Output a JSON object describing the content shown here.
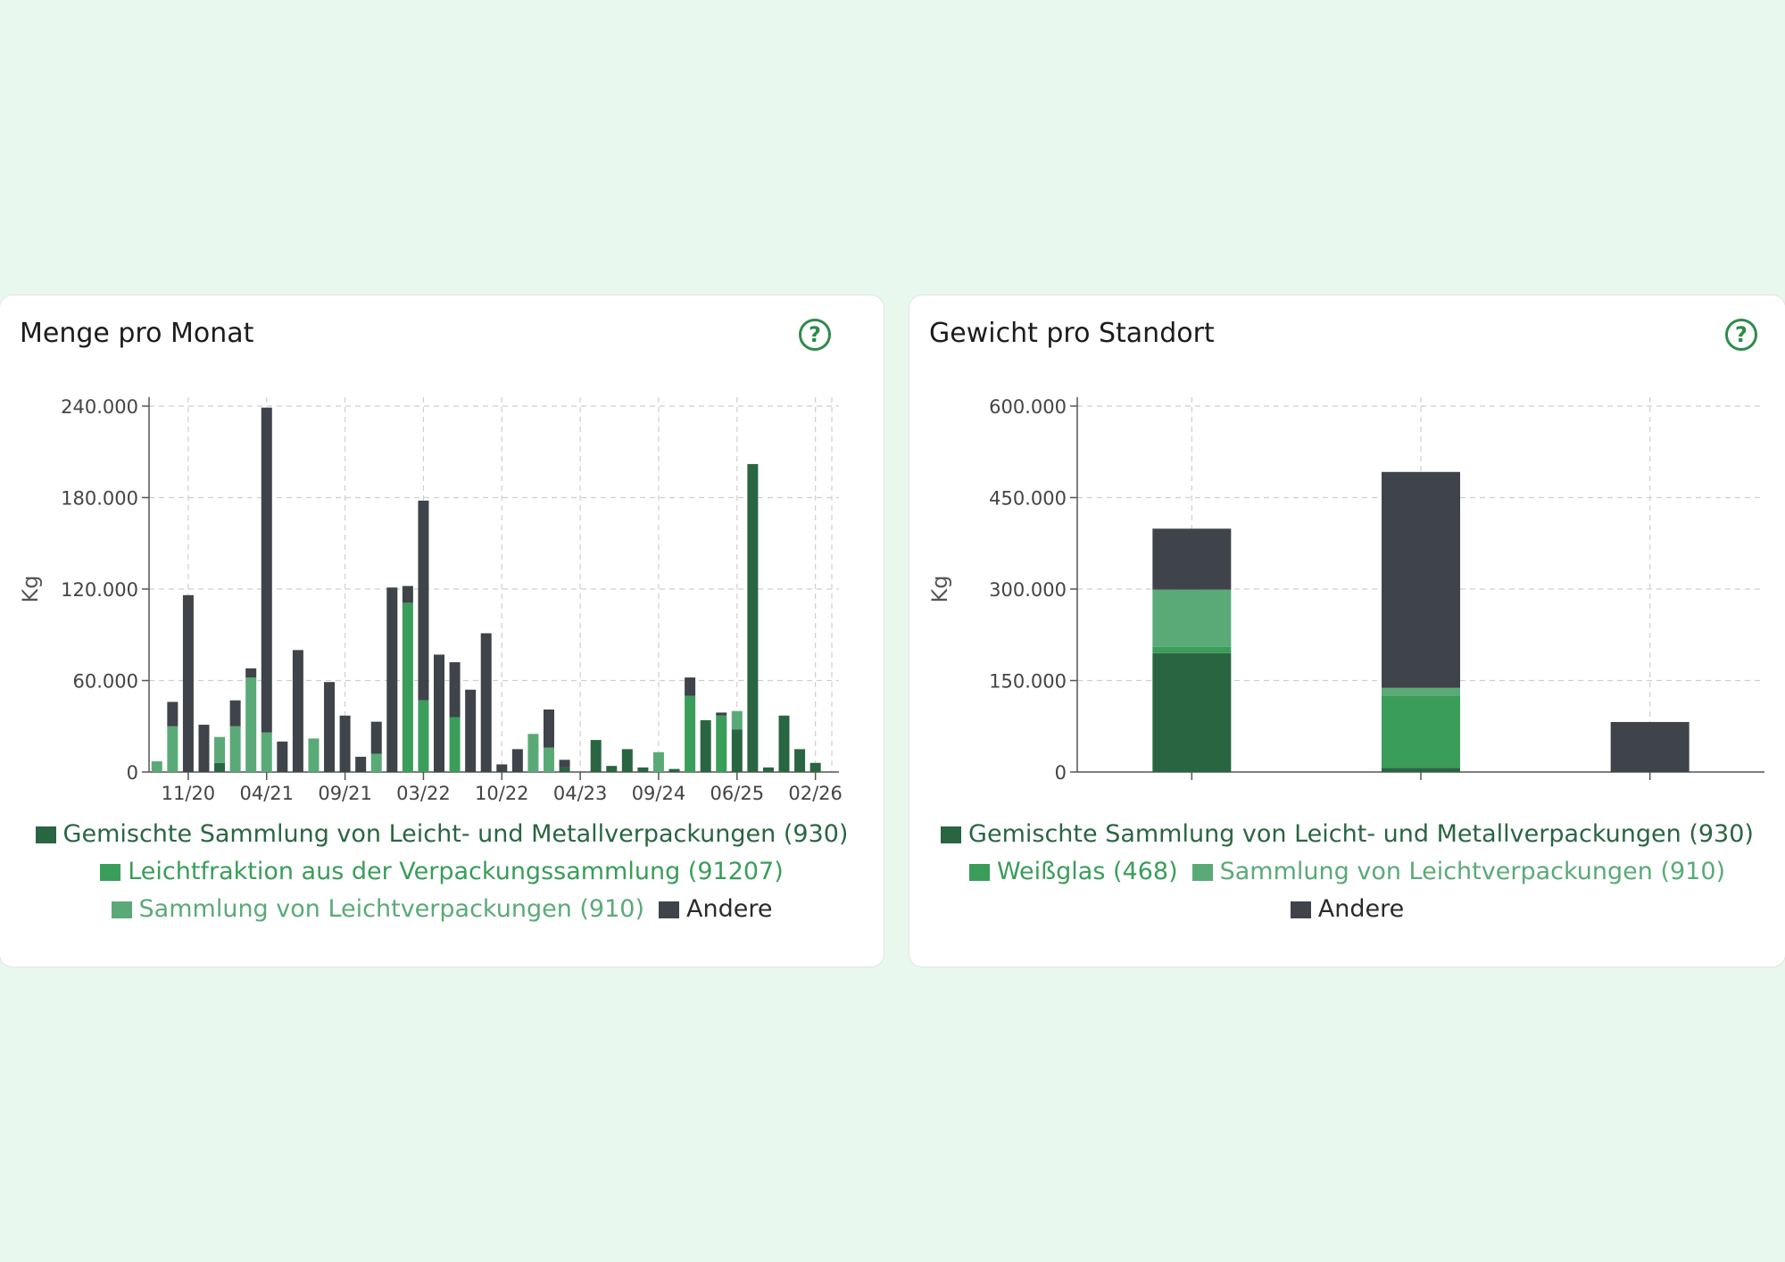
{
  "colors": {
    "dark_green": "#2a6542",
    "mid_green": "#3a9d5a",
    "light_green": "#5aaa78",
    "andere": "#3f434a",
    "help_icon": "#2e8b4a"
  },
  "left_card": {
    "title": "Menge pro Monat",
    "help_icon": "question-circle-icon",
    "legend": [
      {
        "label": "Gemischte Sammlung von Leicht- und Metallverpackungen (930)",
        "color": "#2a6542",
        "text_color": "#2a6542"
      },
      {
        "label": "Leichtfraktion aus der Verpackungssammlung (91207)",
        "color": "#3a9d5a",
        "text_color": "#3a9d5a"
      },
      {
        "label": "Sammlung von Leichtverpackungen (910)",
        "color": "#5aaa78",
        "text_color": "#5aaa78"
      },
      {
        "label": "Andere",
        "color": "#3f434a",
        "text_color": "#2a2a2a"
      }
    ]
  },
  "right_card": {
    "title": "Gewicht pro Standort",
    "help_icon": "question-circle-icon",
    "legend": [
      {
        "label": "Gemischte Sammlung von Leicht- und Metallverpackungen (930)",
        "color": "#2a6542",
        "text_color": "#2a6542"
      },
      {
        "label": "Weißglas (468)",
        "color": "#3a9d5a",
        "text_color": "#3a9d5a"
      },
      {
        "label": "Sammlung von Leichtverpackungen (910)",
        "color": "#5aaa78",
        "text_color": "#5aaa78"
      },
      {
        "label": "Andere",
        "color": "#3f434a",
        "text_color": "#2a2a2a"
      }
    ]
  },
  "chart_data": [
    {
      "type": "bar",
      "stacked": true,
      "title": "Menge pro Monat",
      "ylabel": "Kg",
      "ylim": [
        0,
        240000
      ],
      "yticks": [
        "0",
        "60.000",
        "120.000",
        "180.000",
        "240.000"
      ],
      "xtick_labels": [
        "11/20",
        "04/21",
        "09/21",
        "03/22",
        "10/22",
        "04/23",
        "09/24",
        "06/25",
        "02/26"
      ],
      "xtick_positions": [
        2.5,
        7.5,
        12.5,
        17.5,
        22.5,
        27.5,
        32.5,
        37.5,
        42.5
      ],
      "categories": [
        "1",
        "2",
        "3",
        "4",
        "5",
        "6",
        "7",
        "8",
        "9",
        "10",
        "11",
        "12",
        "13",
        "14",
        "15",
        "16",
        "17",
        "18",
        "19",
        "20",
        "21",
        "22",
        "23",
        "24",
        "25",
        "26",
        "27",
        "28",
        "29",
        "30",
        "31",
        "32",
        "33",
        "34",
        "35",
        "36",
        "37",
        "38",
        "39",
        "40",
        "41",
        "42",
        "43",
        "44"
      ],
      "series": [
        {
          "name": "Gemischte Sammlung von Leicht- und Metallverpackungen (930)",
          "color": "#2a6542",
          "values": [
            0,
            0,
            0,
            0,
            6000,
            0,
            0,
            0,
            0,
            0,
            0,
            0,
            0,
            0,
            0,
            0,
            0,
            0,
            0,
            0,
            0,
            0,
            0,
            0,
            0,
            0,
            3000,
            0,
            21000,
            4000,
            15000,
            3000,
            0,
            2000,
            0,
            34000,
            0,
            28000,
            202000,
            3000,
            37000,
            15000,
            6000,
            0
          ]
        },
        {
          "name": "Leichtfraktion aus der Verpackungssammlung (91207)",
          "color": "#3a9d5a",
          "values": [
            0,
            0,
            0,
            0,
            0,
            0,
            0,
            0,
            0,
            0,
            0,
            0,
            0,
            0,
            0,
            0,
            111000,
            47000,
            0,
            36000,
            0,
            0,
            0,
            0,
            0,
            0,
            0,
            0,
            0,
            0,
            0,
            0,
            0,
            0,
            50000,
            0,
            37000,
            0,
            0,
            0,
            0,
            0,
            0,
            0
          ]
        },
        {
          "name": "Sammlung von Leichtverpackungen (910)",
          "color": "#5aaa78",
          "values": [
            7000,
            30000,
            0,
            0,
            17000,
            30000,
            62000,
            26000,
            0,
            0,
            22000,
            0,
            0,
            0,
            12000,
            0,
            0,
            0,
            0,
            0,
            0,
            0,
            0,
            0,
            25000,
            16000,
            0,
            0,
            0,
            0,
            0,
            0,
            13000,
            0,
            0,
            0,
            0,
            12000,
            0,
            0,
            0,
            0,
            0,
            0
          ]
        },
        {
          "name": "Andere",
          "color": "#3f434a",
          "values": [
            0,
            16000,
            116000,
            31000,
            0,
            17000,
            6000,
            213000,
            20000,
            80000,
            0,
            59000,
            37000,
            10000,
            21000,
            121000,
            11000,
            131000,
            77000,
            36000,
            54000,
            91000,
            5000,
            15000,
            0,
            25000,
            5000,
            0,
            0,
            0,
            0,
            0,
            0,
            0,
            12000,
            0,
            2000,
            0,
            0,
            0,
            0,
            0,
            0,
            0
          ]
        }
      ]
    },
    {
      "type": "bar",
      "stacked": true,
      "title": "Gewicht pro Standort",
      "ylabel": "Kg",
      "ylim": [
        0,
        600000
      ],
      "yticks": [
        "0",
        "150.000",
        "300.000",
        "450.000",
        "600.000"
      ],
      "categories": [
        "",
        "",
        ""
      ],
      "series": [
        {
          "name": "Gemischte Sammlung von Leicht- und Metallverpackungen (930)",
          "color": "#2a6542",
          "values": [
            195000,
            7000,
            0
          ]
        },
        {
          "name": "Weißglas (468)",
          "color": "#3a9d5a",
          "values": [
            10000,
            118000,
            0
          ]
        },
        {
          "name": "Sammlung von Leichtverpackungen (910)",
          "color": "#5aaa78",
          "values": [
            94000,
            13000,
            0
          ]
        },
        {
          "name": "Andere",
          "color": "#3f434a",
          "values": [
            100000,
            354000,
            82000
          ]
        }
      ]
    }
  ]
}
